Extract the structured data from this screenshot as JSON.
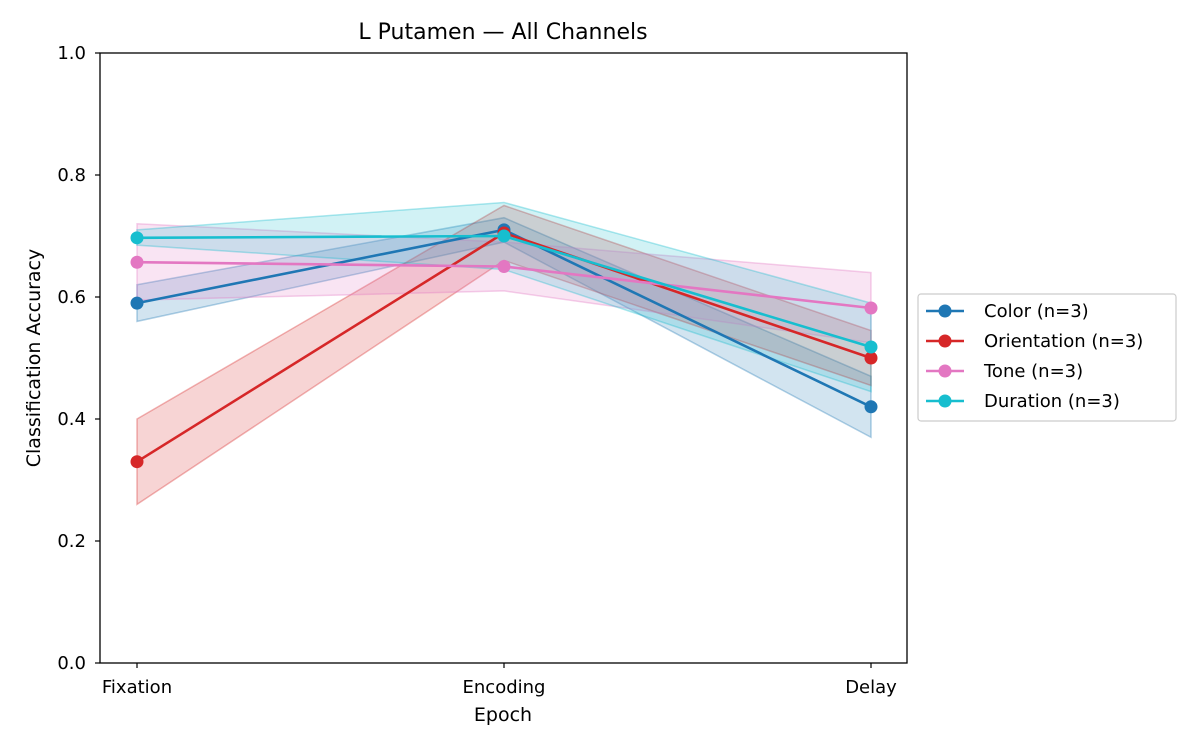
{
  "chart_data": {
    "type": "line",
    "title": "L Putamen — All Channels",
    "xlabel": "Epoch",
    "ylabel": "Classification Accuracy",
    "categories": [
      "Fixation",
      "Encoding",
      "Delay"
    ],
    "ylim": [
      0,
      1
    ],
    "yticks": [
      "0.0",
      "0.2",
      "0.4",
      "0.6",
      "0.8",
      "1.0"
    ],
    "grid": false,
    "legend_position": "right-outside",
    "series": [
      {
        "name": "Color (n=3)",
        "color": "#1f77b4",
        "values": [
          0.59,
          0.71,
          0.42
        ],
        "lower": [
          0.56,
          0.69,
          0.37
        ],
        "upper": [
          0.62,
          0.73,
          0.47
        ]
      },
      {
        "name": "Orientation (n=3)",
        "color": "#d62728",
        "values": [
          0.33,
          0.705,
          0.5
        ],
        "lower": [
          0.26,
          0.66,
          0.455
        ],
        "upper": [
          0.4,
          0.75,
          0.545
        ]
      },
      {
        "name": "Tone (n=3)",
        "color": "#e377c2",
        "values": [
          0.657,
          0.65,
          0.582
        ],
        "lower": [
          0.595,
          0.61,
          0.525
        ],
        "upper": [
          0.72,
          0.69,
          0.64
        ]
      },
      {
        "name": "Duration (n=3)",
        "color": "#17becf",
        "values": [
          0.697,
          0.7,
          0.518
        ],
        "lower": [
          0.685,
          0.645,
          0.445
        ],
        "upper": [
          0.71,
          0.755,
          0.59
        ]
      }
    ]
  }
}
